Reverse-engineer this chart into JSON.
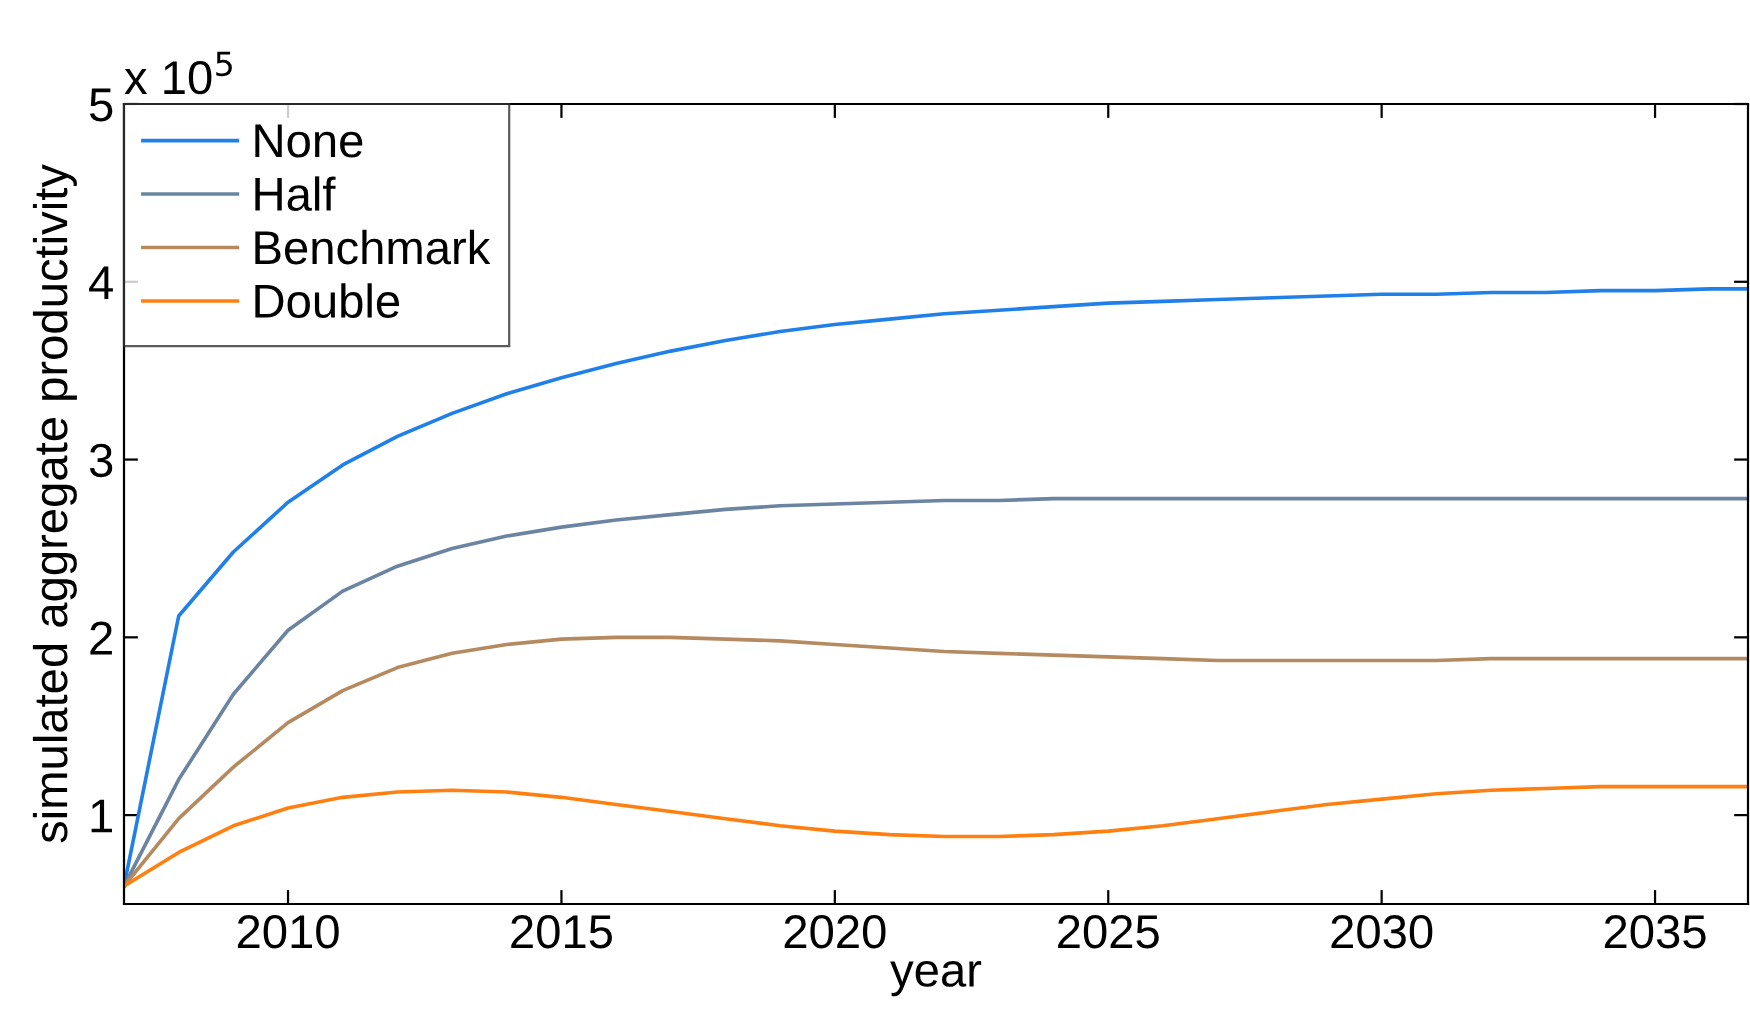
{
  "chart_data": {
    "type": "line",
    "xlabel": "year",
    "ylabel": "simulated aggregate productivity",
    "annotations": [
      "x 10$^{5}$"
    ],
    "x": [
      2007,
      2008,
      2009,
      2010,
      2011,
      2012,
      2013,
      2014,
      2015,
      2016,
      2017,
      2018,
      2019,
      2020,
      2021,
      2022,
      2023,
      2024,
      2025,
      2026,
      2027,
      2028,
      2029,
      2030,
      2031,
      2032,
      2033,
      2034,
      2035,
      2036,
      2036.7
    ],
    "series": [
      {
        "name": "None",
        "color": "#2080e8",
        "values": [
          0.6,
          2.12,
          2.48,
          2.76,
          2.97,
          3.13,
          3.26,
          3.37,
          3.46,
          3.54,
          3.61,
          3.67,
          3.72,
          3.76,
          3.79,
          3.82,
          3.84,
          3.86,
          3.88,
          3.89,
          3.9,
          3.91,
          3.92,
          3.93,
          3.93,
          3.94,
          3.94,
          3.95,
          3.95,
          3.96,
          3.96
        ]
      },
      {
        "name": "Half",
        "color": "#6a84a2",
        "values": [
          0.6,
          1.2,
          1.68,
          2.04,
          2.26,
          2.4,
          2.5,
          2.57,
          2.62,
          2.66,
          2.69,
          2.72,
          2.74,
          2.75,
          2.76,
          2.77,
          2.77,
          2.78,
          2.78,
          2.78,
          2.78,
          2.78,
          2.78,
          2.78,
          2.78,
          2.78,
          2.78,
          2.78,
          2.78,
          2.78,
          2.78
        ]
      },
      {
        "name": "Benchmark",
        "color": "#b58a60",
        "values": [
          0.6,
          0.98,
          1.27,
          1.52,
          1.7,
          1.83,
          1.91,
          1.96,
          1.99,
          2.0,
          2.0,
          1.99,
          1.98,
          1.96,
          1.94,
          1.92,
          1.91,
          1.9,
          1.89,
          1.88,
          1.87,
          1.87,
          1.87,
          1.87,
          1.87,
          1.88,
          1.88,
          1.88,
          1.88,
          1.88,
          1.88
        ]
      },
      {
        "name": "Double",
        "color": "#ff8010",
        "values": [
          0.6,
          0.79,
          0.94,
          1.04,
          1.1,
          1.13,
          1.14,
          1.13,
          1.1,
          1.06,
          1.02,
          0.98,
          0.94,
          0.91,
          0.89,
          0.88,
          0.88,
          0.89,
          0.91,
          0.94,
          0.98,
          1.02,
          1.06,
          1.09,
          1.12,
          1.14,
          1.15,
          1.16,
          1.16,
          1.16,
          1.16
        ]
      }
    ],
    "xlim": [
      2007,
      2036.7
    ],
    "xticks": [
      2010,
      2015,
      2020,
      2025,
      2030,
      2035
    ],
    "ylim": [
      0.5,
      5
    ],
    "yticks": [
      1,
      2,
      3,
      4,
      5
    ],
    "grid": false,
    "legend": "top left",
    "marker": "none",
    "line_style": "solid"
  }
}
